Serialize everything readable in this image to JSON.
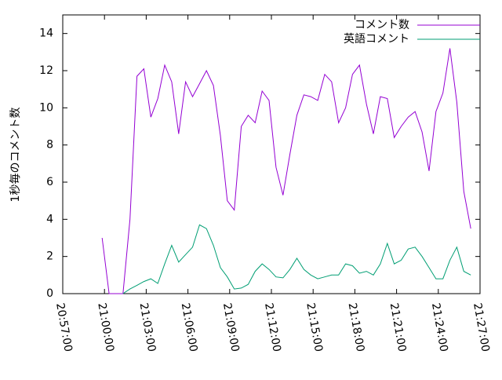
{
  "chart_data": {
    "type": "line",
    "ylabel": "1秒毎のコメント数",
    "x": [
      "20:59:50",
      "21:00:20",
      "21:00:50",
      "21:01:20",
      "21:01:50",
      "21:02:20",
      "21:02:50",
      "21:03:20",
      "21:03:50",
      "21:04:20",
      "21:04:50",
      "21:05:20",
      "21:05:50",
      "21:06:20",
      "21:06:50",
      "21:07:20",
      "21:07:50",
      "21:08:20",
      "21:08:50",
      "21:09:20",
      "21:09:50",
      "21:10:20",
      "21:10:50",
      "21:11:20",
      "21:11:50",
      "21:12:20",
      "21:12:50",
      "21:13:20",
      "21:13:50",
      "21:14:20",
      "21:14:50",
      "21:15:20",
      "21:15:50",
      "21:16:20",
      "21:16:50",
      "21:17:20",
      "21:17:50",
      "21:18:20",
      "21:18:50",
      "21:19:20",
      "21:19:50",
      "21:20:20",
      "21:20:50",
      "21:21:20",
      "21:21:50",
      "21:22:20",
      "21:22:50",
      "21:23:20",
      "21:23:50",
      "21:24:20",
      "21:24:50",
      "21:25:20",
      "21:25:50",
      "21:26:20"
    ],
    "series": [
      {
        "name": "コメント数",
        "color": "#9400d3",
        "values": [
          3.0,
          0,
          0,
          0,
          4,
          11.7,
          12.1,
          9.5,
          10.5,
          12.3,
          11.4,
          8.6,
          11.4,
          10.6,
          11.3,
          12.0,
          11.2,
          8.5,
          5,
          4.5,
          9,
          9.6,
          9.2,
          10.9,
          10.4,
          6.8,
          5.3,
          7.5,
          9.6,
          10.7,
          10.6,
          10.4,
          11.8,
          11.4,
          9.2,
          10,
          11.8,
          12.3,
          10.2,
          8.6,
          10.6,
          10.5,
          8.4,
          9.0,
          9.5,
          9.8,
          8.7,
          6.6,
          9.8,
          10.8,
          13.2,
          10.3,
          5.5,
          3.5
        ]
      },
      {
        "name": "英語コメント",
        "color": "#009e73",
        "values": [
          null,
          null,
          null,
          0,
          0.25,
          0.45,
          0.65,
          0.8,
          0.55,
          1.6,
          2.6,
          1.7,
          2.1,
          2.5,
          3.7,
          3.5,
          2.6,
          1.4,
          0.9,
          0.25,
          0.3,
          0.5,
          1.2,
          1.6,
          1.3,
          0.9,
          0.85,
          1.3,
          1.9,
          1.3,
          1.0,
          0.8,
          0.9,
          1.0,
          1.0,
          1.6,
          1.5,
          1.1,
          1.2,
          1.0,
          1.6,
          2.7,
          1.6,
          1.8,
          2.4,
          2.5,
          2.0,
          1.4,
          0.8,
          0.8,
          1.8,
          2.5,
          1.2,
          1.0
        ]
      }
    ],
    "xlim": [
      "20:57:00",
      "21:27:00"
    ],
    "xticks": [
      "20:57:00",
      "21:00:00",
      "21:03:00",
      "21:06:00",
      "21:09:00",
      "21:12:00",
      "21:15:00",
      "21:18:00",
      "21:21:00",
      "21:24:00",
      "21:27:00"
    ],
    "ylim": [
      0,
      15
    ],
    "yticks": [
      0,
      2,
      4,
      6,
      8,
      10,
      12,
      14
    ],
    "legend": "top-right"
  }
}
